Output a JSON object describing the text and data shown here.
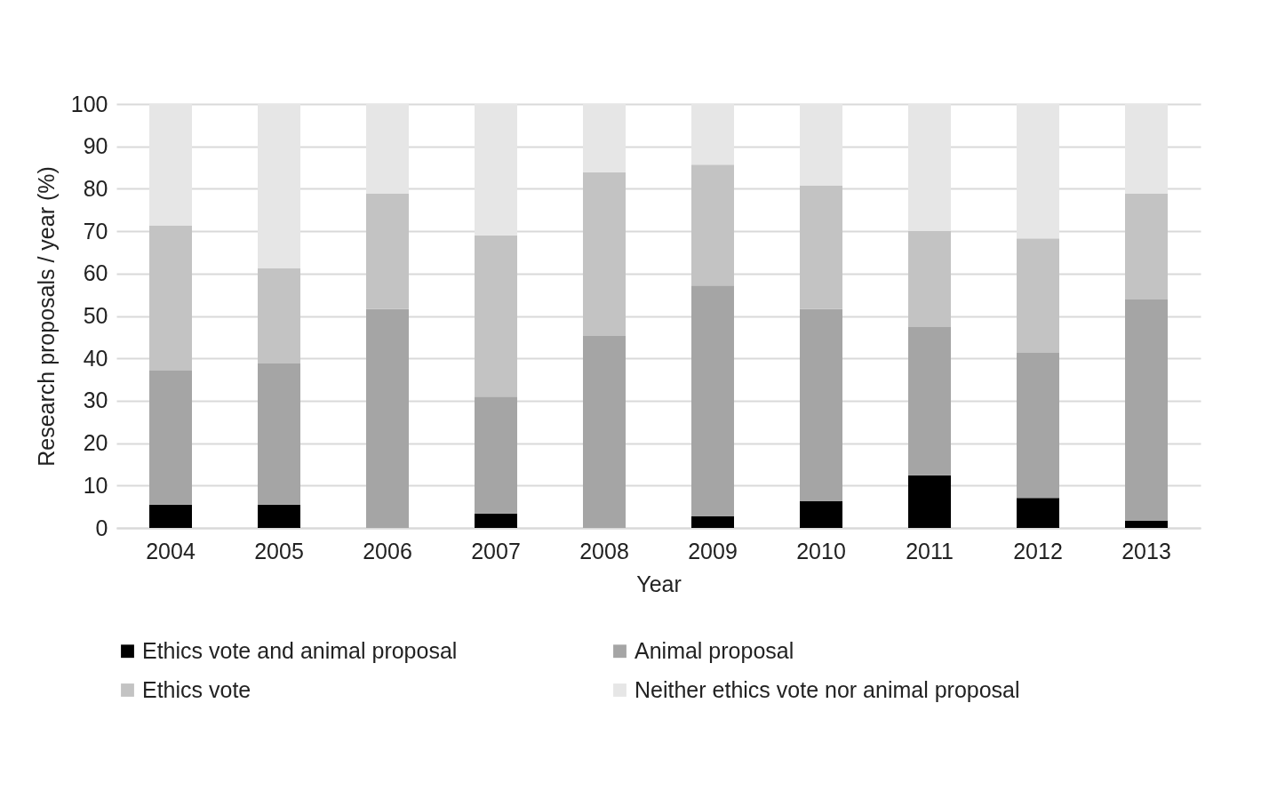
{
  "chart_data": {
    "type": "bar",
    "stacked": true,
    "xlabel": "Year",
    "ylabel": "Research proposals / year (%)",
    "categories": [
      "2004",
      "2005",
      "2006",
      "2007",
      "2008",
      "2009",
      "2010",
      "2011",
      "2012",
      "2013"
    ],
    "series": [
      {
        "name": "Ethics vote and animal proposal",
        "color": "#000000",
        "values": [
          5.5,
          5.5,
          0,
          3.4,
          0,
          2.7,
          6.3,
          12.4,
          7.1,
          1.7
        ]
      },
      {
        "name": "Animal proposal",
        "color": "#a5a5a5",
        "values": [
          31.6,
          33.3,
          51.6,
          27.6,
          45.3,
          54.5,
          45.3,
          35.0,
          34.2,
          52.2
        ]
      },
      {
        "name": "Ethics vote",
        "color": "#c3c3c3",
        "values": [
          34.2,
          22.4,
          27.2,
          38.0,
          38.6,
          28.5,
          29.1,
          22.6,
          27.0,
          24.9
        ]
      },
      {
        "name": "Neither ethics vote nor animal proposal",
        "color": "#e6e6e6",
        "values": [
          28.7,
          38.8,
          21.2,
          31.0,
          16.1,
          14.3,
          19.3,
          30.0,
          31.7,
          21.2
        ]
      }
    ],
    "ylim": [
      0,
      100
    ],
    "yticks": [
      0,
      10,
      20,
      30,
      40,
      50,
      60,
      70,
      80,
      90,
      100
    ],
    "grid": "y",
    "legend": "bottom"
  }
}
